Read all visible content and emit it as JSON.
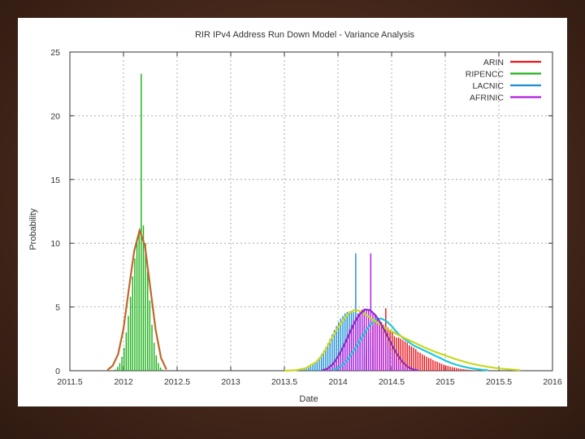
{
  "chart_data": {
    "type": "bar",
    "title": "RIR IPv4 Address Run Down Model - Variance Analysis",
    "xlabel": "Date",
    "ylabel": "Probability",
    "xlim": [
      2011.5,
      2016
    ],
    "ylim": [
      0,
      25
    ],
    "x_ticks": [
      "2011.5",
      "2012",
      "2012.5",
      "2013",
      "2013.5",
      "2014",
      "2014.5",
      "2015",
      "2015.5",
      "2016"
    ],
    "y_ticks": [
      "0",
      "5",
      "10",
      "15",
      "20",
      "25"
    ],
    "grid": true,
    "legend_position": "top-right",
    "bin_width": 0.02,
    "series": [
      {
        "name": "ARIN",
        "color": "#e8141a",
        "x": [
          2014.22,
          2014.24,
          2014.26,
          2014.28,
          2014.3,
          2014.32,
          2014.34,
          2014.36,
          2014.38,
          2014.4,
          2014.42,
          2014.44,
          2014.46,
          2014.48,
          2014.5,
          2014.52,
          2014.54,
          2014.56,
          2014.58,
          2014.6,
          2014.62,
          2014.64,
          2014.66,
          2014.68,
          2014.7,
          2014.72,
          2014.74,
          2014.76,
          2014.78,
          2014.8,
          2014.82,
          2014.84,
          2014.86,
          2014.88,
          2014.9,
          2014.92,
          2014.94,
          2014.96,
          2014.98,
          2015.0,
          2015.02,
          2015.04,
          2015.06,
          2015.08,
          2015.1,
          2015.12,
          2015.14,
          2015.16,
          2015.18,
          2015.2,
          2015.22,
          2015.24,
          2015.26,
          2015.28,
          2015.3
        ],
        "values": [
          0.8,
          1.2,
          1.8,
          2.4,
          3.0,
          3.5,
          3.8,
          4.0,
          3.9,
          3.8,
          3.6,
          4.9,
          3.4,
          3.2,
          3.0,
          2.7,
          2.6,
          2.6,
          2.5,
          2.4,
          2.3,
          2.2,
          2.0,
          1.9,
          1.8,
          1.7,
          1.5,
          1.4,
          1.3,
          1.2,
          1.1,
          1.0,
          0.95,
          0.85,
          0.75,
          0.7,
          0.62,
          0.55,
          0.48,
          0.42,
          0.38,
          0.33,
          0.28,
          0.25,
          0.22,
          0.18,
          0.15,
          0.13,
          0.1,
          0.08,
          0.06,
          0.05,
          0.04,
          0.03,
          0.02
        ],
        "fit_x": [
          2013.95,
          2014.0,
          2014.05,
          2014.1,
          2014.15,
          2014.2,
          2014.25,
          2014.3,
          2014.35,
          2014.4,
          2014.45,
          2014.5,
          2014.55,
          2014.6,
          2014.65,
          2014.7,
          2014.75,
          2014.8,
          2014.85,
          2014.9,
          2014.95,
          2015.0,
          2015.05,
          2015.1,
          2015.15,
          2015.2,
          2015.25,
          2015.3,
          2015.35,
          2015.4
        ],
        "fit_y": [
          0.05,
          0.2,
          0.5,
          1.0,
          1.6,
          2.3,
          3.0,
          3.6,
          4.0,
          4.1,
          3.9,
          3.5,
          3.0,
          2.6,
          2.3,
          2.0,
          1.8,
          1.6,
          1.4,
          1.2,
          1.0,
          0.8,
          0.62,
          0.48,
          0.36,
          0.26,
          0.18,
          0.12,
          0.07,
          0.03
        ]
      },
      {
        "name": "RIPENCC",
        "color": "#1fb21a",
        "x": [
          2011.92,
          2011.94,
          2011.96,
          2011.98,
          2012.0,
          2012.02,
          2012.04,
          2012.06,
          2012.08,
          2012.1,
          2012.12,
          2012.14,
          2012.16,
          2012.18,
          2012.2,
          2012.22,
          2012.24,
          2012.26,
          2012.28,
          2012.3,
          2012.32,
          2012.34,
          2012.36
        ],
        "values": [
          0.1,
          0.3,
          0.6,
          1.1,
          1.8,
          3.0,
          4.3,
          5.8,
          7.4,
          8.8,
          10.2,
          11.0,
          23.3,
          11.4,
          10.0,
          7.8,
          5.5,
          3.6,
          2.2,
          1.2,
          0.6,
          0.25,
          0.08
        ],
        "fit_x": [
          2011.85,
          2011.9,
          2011.95,
          2012.0,
          2012.05,
          2012.1,
          2012.15,
          2012.2,
          2012.25,
          2012.3,
          2012.35,
          2012.4
        ],
        "fit_y": [
          0.05,
          0.4,
          1.3,
          3.3,
          6.4,
          9.4,
          11.0,
          9.8,
          6.5,
          3.2,
          1.0,
          0.1
        ]
      },
      {
        "name": "LACNIC",
        "color": "#1e8fd6",
        "x": [
          2013.6,
          2013.62,
          2013.64,
          2013.66,
          2013.68,
          2013.7,
          2013.72,
          2013.74,
          2013.76,
          2013.78,
          2013.8,
          2013.82,
          2013.84,
          2013.86,
          2013.88,
          2013.9,
          2013.92,
          2013.94,
          2013.96,
          2013.98,
          2014.0,
          2014.02,
          2014.04,
          2014.06,
          2014.08,
          2014.1,
          2014.12,
          2014.14,
          2014.16,
          2014.18,
          2014.2,
          2014.22,
          2014.24,
          2014.26,
          2014.28,
          2014.3,
          2014.32
        ],
        "values": [
          0.02,
          0.03,
          0.05,
          0.08,
          0.12,
          0.18,
          0.26,
          0.36,
          0.5,
          0.65,
          0.85,
          1.05,
          1.3,
          1.55,
          1.85,
          2.15,
          2.5,
          2.85,
          3.2,
          3.5,
          3.8,
          4.1,
          4.3,
          4.5,
          4.6,
          4.65,
          4.7,
          4.6,
          9.2,
          4.4,
          4.2,
          4.0,
          3.6,
          3.2,
          2.7,
          2.2,
          1.6
        ],
        "fit_x": [
          2013.5,
          2013.6,
          2013.7,
          2013.8,
          2013.85,
          2013.9,
          2013.95,
          2014.0,
          2014.05,
          2014.1,
          2014.15,
          2014.2,
          2014.25,
          2014.3,
          2014.35,
          2014.4,
          2014.45,
          2014.5,
          2014.55,
          2014.6,
          2014.65,
          2014.7,
          2014.75,
          2014.8,
          2014.9,
          2015.0,
          2015.1,
          2015.2,
          2015.3,
          2015.4,
          2015.5,
          2015.6,
          2015.7
        ],
        "fit_y": [
          0.0,
          0.03,
          0.2,
          0.7,
          1.2,
          1.9,
          2.7,
          3.4,
          4.0,
          4.5,
          4.75,
          4.7,
          4.45,
          4.15,
          3.85,
          3.6,
          3.3,
          3.1,
          2.85,
          2.65,
          2.45,
          2.25,
          2.05,
          1.85,
          1.5,
          1.2,
          0.9,
          0.65,
          0.45,
          0.3,
          0.18,
          0.1,
          0.05
        ]
      },
      {
        "name": "AFRINIC",
        "color": "#b21ee0",
        "x": [
          2013.9,
          2013.92,
          2013.94,
          2013.96,
          2013.98,
          2014.0,
          2014.02,
          2014.04,
          2014.06,
          2014.08,
          2014.1,
          2014.12,
          2014.14,
          2014.16,
          2014.18,
          2014.2,
          2014.22,
          2014.24,
          2014.26,
          2014.28,
          2014.3,
          2014.32,
          2014.34,
          2014.36,
          2014.38,
          2014.4,
          2014.42,
          2014.44,
          2014.46,
          2014.48,
          2014.5,
          2014.52,
          2014.54,
          2014.56,
          2014.58,
          2014.6,
          2014.62,
          2014.64,
          2014.66,
          2014.68,
          2014.7
        ],
        "values": [
          0.1,
          0.2,
          0.35,
          0.55,
          0.8,
          1.1,
          1.45,
          1.85,
          2.3,
          2.75,
          3.2,
          3.6,
          3.95,
          4.25,
          4.5,
          4.7,
          4.8,
          4.85,
          4.8,
          4.75,
          9.2,
          4.5,
          4.3,
          4.0,
          3.7,
          3.35,
          3.0,
          2.6,
          2.25,
          1.9,
          1.55,
          1.25,
          0.98,
          0.75,
          0.56,
          0.4,
          0.28,
          0.18,
          0.11,
          0.06,
          0.03
        ],
        "fit_x": [
          2013.85,
          2013.9,
          2013.95,
          2014.0,
          2014.05,
          2014.1,
          2014.15,
          2014.2,
          2014.25,
          2014.3,
          2014.35,
          2014.4,
          2014.45,
          2014.5,
          2014.55,
          2014.6,
          2014.65,
          2014.7,
          2014.75
        ],
        "fit_y": [
          0.02,
          0.15,
          0.5,
          1.1,
          1.9,
          2.8,
          3.7,
          4.4,
          4.8,
          4.75,
          4.35,
          3.7,
          2.9,
          2.05,
          1.3,
          0.7,
          0.3,
          0.1,
          0.02
        ]
      }
    ]
  }
}
